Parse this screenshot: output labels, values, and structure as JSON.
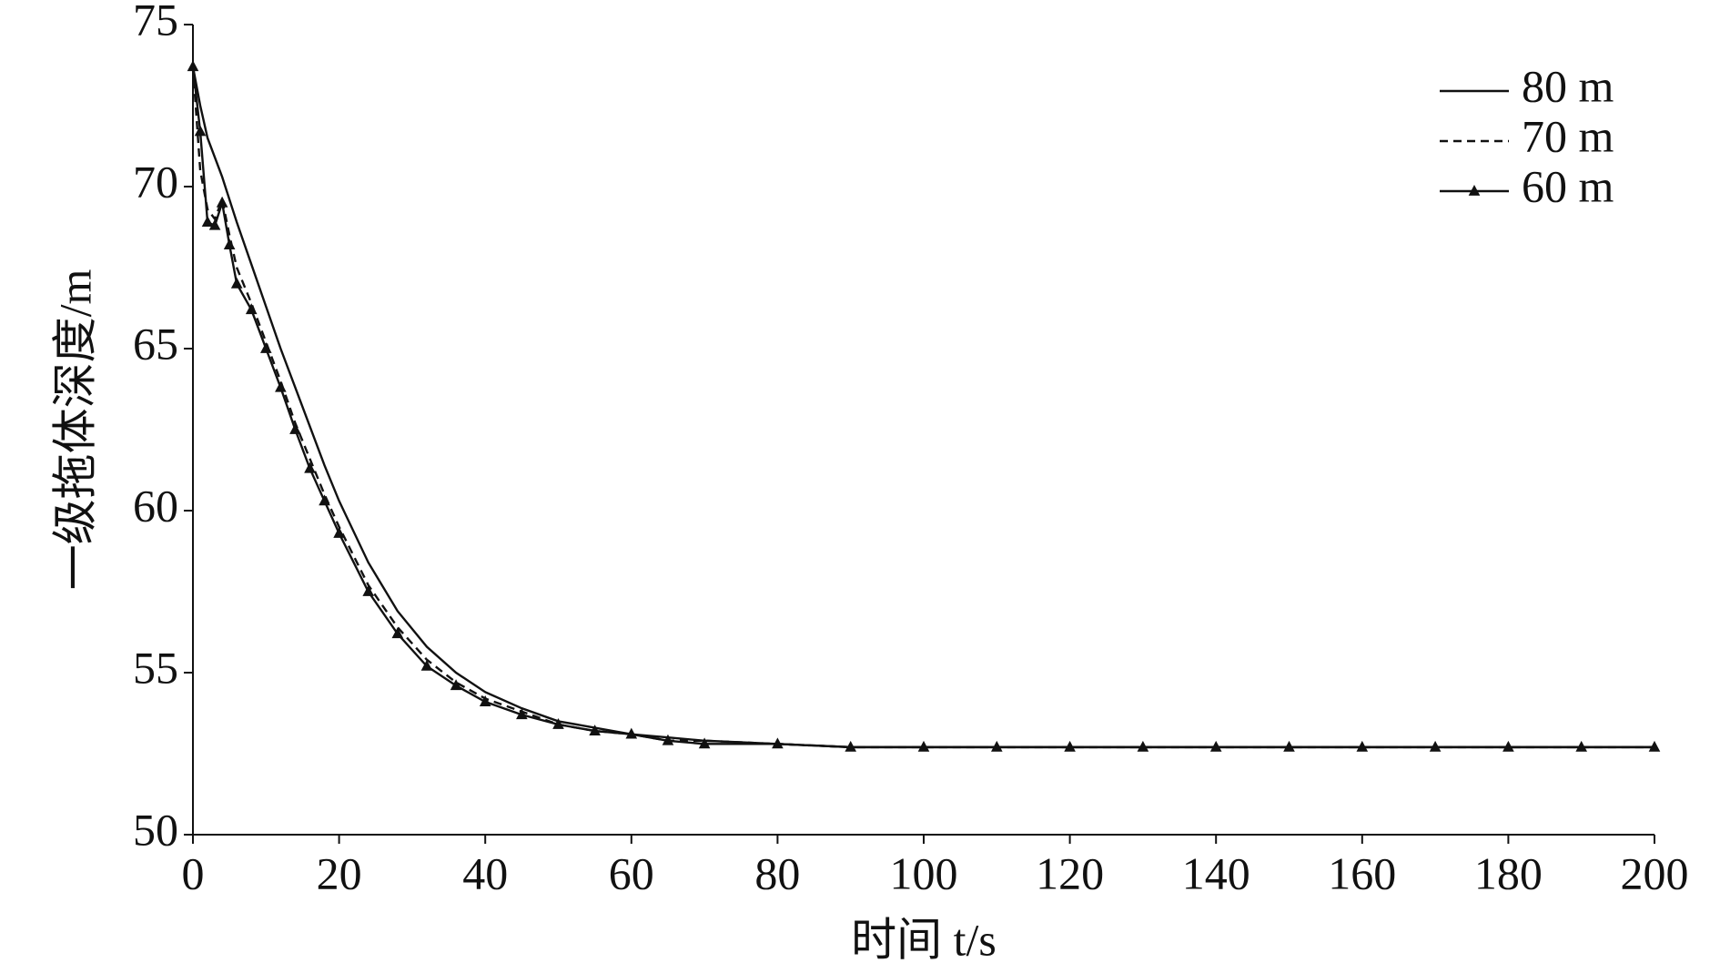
{
  "chart_data": {
    "type": "line",
    "xlabel": "时间 t/s",
    "ylabel": "一级拖体深度/m",
    "x": [
      0,
      1,
      2,
      3,
      4,
      5,
      6,
      8,
      10,
      12,
      14,
      16,
      18,
      20,
      24,
      28,
      32,
      36,
      40,
      45,
      50,
      55,
      60,
      65,
      70,
      80,
      90,
      100,
      110,
      120,
      130,
      140,
      150,
      160,
      170,
      180,
      190,
      200
    ],
    "series": [
      {
        "name": "80 m",
        "color": "#111111",
        "linestyle": "solid",
        "marker": "none",
        "values": [
          73.7,
          72.5,
          71.5,
          70.9,
          70.3,
          69.6,
          68.9,
          67.6,
          66.3,
          65.0,
          63.8,
          62.6,
          61.4,
          60.3,
          58.4,
          56.9,
          55.8,
          55.0,
          54.4,
          53.9,
          53.5,
          53.3,
          53.1,
          53.0,
          52.9,
          52.8,
          52.7,
          52.7,
          52.7,
          52.7,
          52.7,
          52.7,
          52.7,
          52.7,
          52.7,
          52.7,
          52.7,
          52.7
        ]
      },
      {
        "name": "70 m",
        "color": "#111111",
        "linestyle": "dashed",
        "marker": "none",
        "values": [
          73.7,
          70.5,
          69.3,
          69.0,
          69.6,
          68.5,
          67.5,
          66.4,
          65.2,
          64.0,
          62.7,
          61.6,
          60.5,
          59.5,
          57.7,
          56.4,
          55.4,
          54.7,
          54.2,
          53.8,
          53.4,
          53.2,
          53.1,
          52.9,
          52.9,
          52.8,
          52.7,
          52.7,
          52.7,
          52.7,
          52.7,
          52.7,
          52.7,
          52.7,
          52.7,
          52.7,
          52.7,
          52.7
        ]
      },
      {
        "name": "60 m",
        "color": "#111111",
        "linestyle": "solid",
        "marker": "triangle",
        "values": [
          73.7,
          71.7,
          68.9,
          68.8,
          69.5,
          68.2,
          67.0,
          66.2,
          65.0,
          63.8,
          62.5,
          61.3,
          60.3,
          59.3,
          57.5,
          56.2,
          55.2,
          54.6,
          54.1,
          53.7,
          53.4,
          53.2,
          53.1,
          52.9,
          52.8,
          52.8,
          52.7,
          52.7,
          52.7,
          52.7,
          52.7,
          52.7,
          52.7,
          52.7,
          52.7,
          52.7,
          52.7,
          52.7
        ]
      }
    ],
    "xlim": [
      0,
      200
    ],
    "xticks": [
      0,
      20,
      40,
      60,
      80,
      100,
      120,
      140,
      160,
      180,
      200
    ],
    "ylim": [
      50,
      75
    ],
    "yticks": [
      50,
      55,
      60,
      65,
      70,
      75
    ],
    "grid": false,
    "legend": "upper right"
  }
}
